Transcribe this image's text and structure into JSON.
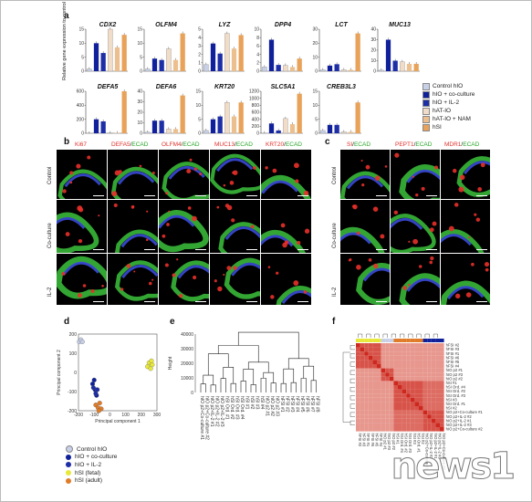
{
  "panels": {
    "a": "a",
    "b": "b",
    "c": "c",
    "d": "d",
    "e": "e",
    "f": "f"
  },
  "colors": {
    "control": "#c8d0e8",
    "coculture": "#10209a",
    "il2": "#1d2ea6",
    "hat": "#f1dcc8",
    "hat_nam": "#ecc08e",
    "hsi": "#e8a25a",
    "fetal": "#e8e83a",
    "adult": "#e07c28"
  },
  "panel_a": {
    "ylabel": "Relative gene expression to control",
    "legend": [
      "Control hIO",
      "hIO + co-culture",
      "hIO + IL-2",
      "hAT-IO",
      "hAT-IO + NAM",
      "hSI"
    ]
  },
  "chart_data": [
    {
      "type": "bar",
      "title": "CDX2",
      "categories": [
        "Control hIO",
        "hIO + co-culture",
        "hIO + IL-2",
        "hAT-IO",
        "hAT-IO + NAM",
        "hSI"
      ],
      "values": [
        0.8,
        10,
        6.5,
        15,
        8.5,
        13
      ],
      "ylim": [
        0,
        15
      ],
      "yticks": [
        0,
        5,
        10,
        15
      ]
    },
    {
      "type": "bar",
      "title": "OLFM4",
      "categories": [
        "Control hIO",
        "hIO + co-culture",
        "hIO + IL-2",
        "hAT-IO",
        "hAT-IO + NAM",
        "hSI"
      ],
      "values": [
        0.8,
        4.5,
        4,
        8,
        4,
        13.5
      ],
      "ylim": [
        0,
        15
      ],
      "yticks": [
        0,
        5,
        10,
        15
      ]
    },
    {
      "type": "bar",
      "title": "LYZ",
      "categories": [
        "Control hIO",
        "hIO + co-culture",
        "hIO + IL-2",
        "hAT-IO",
        "hAT-IO + NAM",
        "hSI"
      ],
      "values": [
        0.8,
        3.3,
        2.1,
        4.5,
        2.7,
        4.3
      ],
      "ylim": [
        0,
        5
      ],
      "yticks": [
        0,
        1,
        2,
        3,
        4,
        5
      ]
    },
    {
      "type": "bar",
      "title": "DPP4",
      "categories": [
        "Control hIO",
        "hIO + co-culture",
        "hIO + IL-2",
        "hAT-IO",
        "hAT-IO + NAM",
        "hSI"
      ],
      "values": [
        1,
        7.5,
        1.5,
        1.4,
        1,
        3
      ],
      "ylim": [
        0,
        10
      ],
      "yticks": [
        0,
        2,
        4,
        6,
        8,
        10
      ]
    },
    {
      "type": "bar",
      "title": "LCT",
      "categories": [
        "Control hIO",
        "hIO + co-culture",
        "hIO + IL-2",
        "hAT-IO",
        "hAT-IO + NAM",
        "hSI"
      ],
      "values": [
        1,
        4,
        5,
        1,
        1,
        27
      ],
      "ylim": [
        0,
        30
      ],
      "yticks": [
        0,
        10,
        20,
        30
      ]
    },
    {
      "type": "bar",
      "title": "MUC13",
      "categories": [
        "Control hIO",
        "hIO + co-culture",
        "hIO + IL-2",
        "hAT-IO",
        "hAT-IO + NAM",
        "hSI"
      ],
      "values": [
        1,
        30,
        10,
        9,
        7,
        7
      ],
      "ylim": [
        0,
        40
      ],
      "yticks": [
        0,
        10,
        20,
        30,
        40
      ]
    },
    {
      "type": "bar",
      "title": "DEFA5",
      "categories": [
        "Control hIO",
        "hIO + co-culture",
        "hIO + IL-2",
        "hAT-IO",
        "hAT-IO + NAM",
        "hSI"
      ],
      "values": [
        0.5,
        200,
        170,
        5,
        5,
        630
      ],
      "ylim": [
        0,
        600
      ],
      "yticks": [
        0,
        200,
        400,
        600
      ]
    },
    {
      "type": "bar",
      "title": "DEFA6",
      "categories": [
        "Control hIO",
        "hIO + co-culture",
        "hIO + IL-2",
        "hAT-IO",
        "hAT-IO + NAM",
        "hSI"
      ],
      "values": [
        1,
        12,
        12,
        4,
        4,
        36
      ],
      "ylim": [
        0,
        40
      ],
      "yticks": [
        0,
        10,
        20,
        30,
        40
      ]
    },
    {
      "type": "bar",
      "title": "KRT20",
      "categories": [
        "Control hIO",
        "hIO + co-culture",
        "hIO + IL-2",
        "hAT-IO",
        "hAT-IO + NAM",
        "hSI"
      ],
      "values": [
        1,
        5,
        6,
        11,
        6,
        11
      ],
      "ylim": [
        0,
        15
      ],
      "yticks": [
        0,
        5,
        10,
        15
      ]
    },
    {
      "type": "bar",
      "title": "SLC5A1",
      "categories": [
        "Control hIO",
        "hIO + co-culture",
        "hIO + IL-2",
        "hAT-IO",
        "hAT-IO + NAM",
        "hSI"
      ],
      "values": [
        5,
        280,
        80,
        420,
        260,
        1130
      ],
      "ylim": [
        0,
        1200
      ],
      "yticks": [
        0,
        200,
        400,
        600,
        800,
        1000,
        1200
      ]
    },
    {
      "type": "bar",
      "title": "CREB3L3",
      "categories": [
        "Control hIO",
        "hIO + co-culture",
        "hIO + IL-2",
        "hAT-IO",
        "hAT-IO + NAM",
        "hSI"
      ],
      "values": [
        1,
        3,
        3,
        0.5,
        0.5,
        11
      ],
      "ylim": [
        0,
        15
      ],
      "yticks": [
        0,
        5,
        10,
        15
      ]
    },
    {
      "type": "scatter",
      "title": "",
      "xlabel": "Principal component 1",
      "ylabel": "Principal component 2",
      "xlim": [
        -200,
        300
      ],
      "ylim": [
        -200,
        200
      ],
      "xticks": [
        -200,
        -100,
        0,
        100,
        200,
        300
      ],
      "yticks": [
        -200,
        -100,
        0,
        100,
        200
      ],
      "series": [
        {
          "name": "Control hIO",
          "points": [
            [
              -195,
              160
            ],
            [
              -185,
              170
            ],
            [
              -175,
              160
            ]
          ]
        },
        {
          "name": "hIO + co-culture",
          "points": [
            [
              -110,
              -60
            ],
            [
              -100,
              -40
            ],
            [
              -95,
              -90
            ],
            [
              -85,
              -120
            ]
          ]
        },
        {
          "name": "hIO + IL-2",
          "points": [
            [
              -105,
              -80
            ],
            [
              -90,
              -110
            ],
            [
              -80,
              -90
            ]
          ]
        },
        {
          "name": "hSI (fetal)",
          "points": [
            [
              240,
              30
            ],
            [
              250,
              50
            ],
            [
              260,
              20
            ],
            [
              270,
              40
            ],
            [
              265,
              60
            ]
          ]
        },
        {
          "name": "hSI (adult)",
          "points": [
            [
              -90,
              -170
            ],
            [
              -75,
              -185
            ],
            [
              -65,
              -160
            ],
            [
              -55,
              -190
            ],
            [
              -70,
              -200
            ]
          ]
        }
      ]
    },
    {
      "type": "heatmap",
      "title": "",
      "note": "correlation matrix"
    }
  ],
  "panel_b": {
    "headers": [
      {
        "a": "Ki67",
        "b": ""
      },
      {
        "a": "DEFA5",
        "b": "ECAD"
      },
      {
        "a": "OLFM4",
        "b": "ECAD"
      },
      {
        "a": "MUC13",
        "b": "ECAD"
      },
      {
        "a": "KRT20",
        "b": "ECAD"
      }
    ],
    "rows": [
      "Control",
      "Co-culture",
      "IL-2"
    ]
  },
  "panel_c": {
    "headers": [
      {
        "a": "SI",
        "b": "ECAD"
      },
      {
        "a": "PEPT1",
        "b": "ECAD"
      },
      {
        "a": "MDR1",
        "b": "ECAD"
      }
    ],
    "rows": [
      "Control",
      "Co-culture",
      "IL-2"
    ]
  },
  "panel_d": {
    "xlabel": "Principal component 1",
    "ylabel": "Principal component 2",
    "legend": [
      "Control hIO",
      "hIO + co-culture",
      "hIO + IL-2",
      "hSI (fetal)",
      "hSI (adult)"
    ]
  },
  "panel_e": {
    "ylabel": "Height",
    "yticks": [
      "40000",
      "30000",
      "20000",
      "10000",
      "0"
    ],
    "leaves": [
      "hIO p2+Co-culture #1",
      "hIO p2+Co-culture #2",
      "hIO p2+IL-2 #1",
      "hIO p2+IL-2 #2",
      "hIO p2+IL-2 #3",
      "hSI Ord. #1",
      "hSI Ord. #2",
      "hSI Ord. #3",
      "hSI Ord. #4",
      "hSI #1",
      "hSI #2",
      "hSI #3",
      "hSI #4",
      "hIO p2 #1",
      "hIO p2 #2",
      "hIO p2 #3",
      "hFSI #1",
      "hFSI #2",
      "hFSI #3",
      "hFSI #4",
      "hFSI #5",
      "hFSI #6",
      "hFSI #7",
      "hFSI #8"
    ]
  },
  "panel_f": {
    "row_labels": [
      "hFSI #2",
      "hFSI #3",
      "hFSI #1",
      "hFSI #6",
      "hFSI #5",
      "hFSI #4",
      "hIO p2 #1",
      "hIO p2 #3",
      "hIO p2 #2",
      "hSI #1",
      "hSI Ord. #4",
      "hSI Ord. #2",
      "hSI Ord. #3",
      "hSI #3",
      "hSI Ord. #1",
      "hSI #2",
      "hIO p2+Co-culture #1",
      "hIO p2+IL-2 #2",
      "hIO p2+IL-2 #1",
      "hIO p2+IL-2 #3",
      "hIO p2+Co-culture #2"
    ]
  },
  "watermark": "news1"
}
